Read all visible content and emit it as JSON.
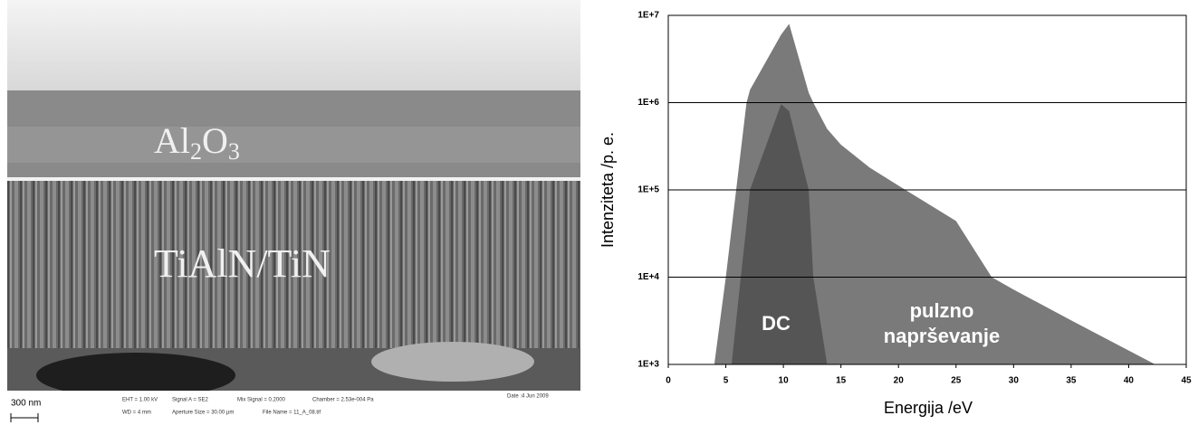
{
  "image": {
    "layers": [
      {
        "parts": [
          "Al",
          "2",
          "O",
          "3"
        ]
      },
      {
        "parts": [
          "TiAlN/TiN"
        ]
      }
    ],
    "scale_bar": "300 nm",
    "info": [
      "EHT = 1.00 kV",
      "Signal A = SE2",
      "Mix Signal = 0.2000",
      "Chamber = 2.53e-004 Pa",
      "Date :4 Jun 2009",
      "WD = 4 mm",
      "Aperture Size = 30.00 µm",
      "File Name = 11_A_08.tif"
    ]
  },
  "chart_data": {
    "type": "area",
    "xlabel": "Energija /eV",
    "ylabel": "Intenziteta /p. e.",
    "x": [
      4,
      5,
      5.5,
      6.3,
      6.8,
      7.1,
      9.8,
      10.5,
      12.2,
      12.6,
      13.8,
      15,
      17.5,
      20.6,
      25,
      28.1,
      30,
      35,
      42.3
    ],
    "series": [
      {
        "name": "pulzno naprševanje",
        "color": "#7a7a7a",
        "values": [
          1000,
          10000,
          36000,
          280000,
          1000000,
          1400000,
          6000000,
          8000000,
          1300000,
          1000000,
          500000,
          330000,
          180000,
          100000,
          44000,
          10000,
          7200,
          3200,
          1000
        ]
      },
      {
        "name": "DC",
        "color": "#555555",
        "values": [
          null,
          null,
          1000,
          10000,
          40000,
          100000,
          960000,
          800000,
          100000,
          10000,
          1000,
          null,
          null,
          null,
          null,
          null,
          null,
          null,
          null
        ]
      }
    ],
    "xlim": [
      0,
      45
    ],
    "xticks": [
      0,
      5,
      10,
      15,
      20,
      25,
      30,
      35,
      40,
      45
    ],
    "ylim": [
      1000,
      10000000
    ],
    "log_y": true,
    "grid": true,
    "yticks": [
      {
        "value": 1000,
        "label": "1E+3"
      },
      {
        "value": 10000,
        "label": "1E+4"
      },
      {
        "value": 100000,
        "label": "1E+5"
      },
      {
        "value": 1000000,
        "label": "1E+6"
      },
      {
        "value": 10000000,
        "label": "1E+7"
      }
    ]
  }
}
